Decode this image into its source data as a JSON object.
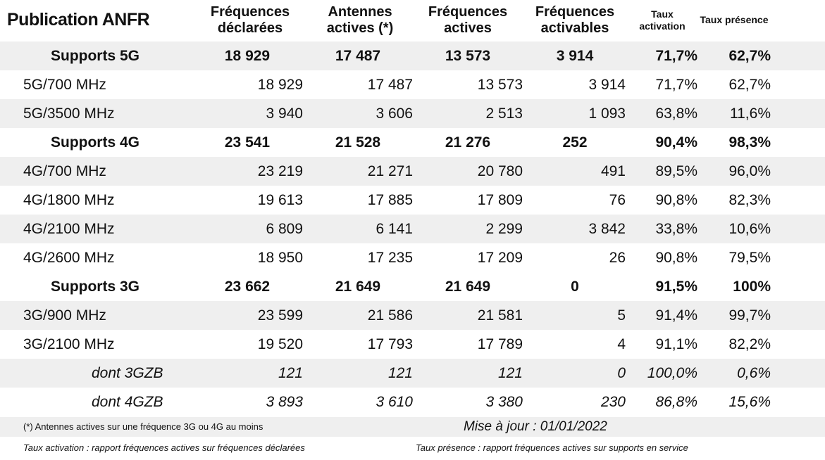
{
  "title": "Publication ANFR",
  "headers": {
    "freq_declarees": [
      "Fréquences",
      "déclarées"
    ],
    "antennes_actives": [
      "Antennes",
      "actives (*)"
    ],
    "freq_actives": [
      "Fréquences",
      "actives"
    ],
    "freq_activables": [
      "Fréquences",
      "activables"
    ],
    "taux_activation": [
      "Taux",
      "activation"
    ],
    "taux_presence": "Taux présence"
  },
  "rows": [
    {
      "type": "summary",
      "bg": "grey",
      "label": "Supports 5G",
      "declarees": "18 929",
      "antennes": "17 487",
      "actives": "13 573",
      "activables": "3 914",
      "taux_activation": "71,7%",
      "taux_presence": "62,7%"
    },
    {
      "type": "detail",
      "bg": "white",
      "label": "5G/700 MHz",
      "declarees": "18 929",
      "antennes": "17 487",
      "actives": "13 573",
      "activables": "3 914",
      "taux_activation": "71,7%",
      "taux_presence": "62,7%"
    },
    {
      "type": "detail",
      "bg": "grey",
      "label": "5G/3500 MHz",
      "declarees": "3 940",
      "antennes": "3 606",
      "actives": "2 513",
      "activables": "1 093",
      "taux_activation": "63,8%",
      "taux_presence": "11,6%"
    },
    {
      "type": "summary",
      "bg": "white",
      "label": "Supports 4G",
      "declarees": "23 541",
      "antennes": "21 528",
      "actives": "21 276",
      "activables": "252",
      "taux_activation": "90,4%",
      "taux_presence": "98,3%"
    },
    {
      "type": "detail",
      "bg": "grey",
      "label": "4G/700 MHz",
      "declarees": "23 219",
      "antennes": "21 271",
      "actives": "20 780",
      "activables": "491",
      "taux_activation": "89,5%",
      "taux_presence": "96,0%"
    },
    {
      "type": "detail",
      "bg": "white",
      "label": "4G/1800 MHz",
      "declarees": "19 613",
      "antennes": "17 885",
      "actives": "17 809",
      "activables": "76",
      "taux_activation": "90,8%",
      "taux_presence": "82,3%"
    },
    {
      "type": "detail",
      "bg": "grey",
      "label": "4G/2100 MHz",
      "declarees": "6 809",
      "antennes": "6 141",
      "actives": "2 299",
      "activables": "3 842",
      "taux_activation": "33,8%",
      "taux_presence": "10,6%"
    },
    {
      "type": "detail",
      "bg": "white",
      "label": "4G/2600 MHz",
      "declarees": "18 950",
      "antennes": "17 235",
      "actives": "17 209",
      "activables": "26",
      "taux_activation": "90,8%",
      "taux_presence": "79,5%"
    },
    {
      "type": "summary",
      "bg": "white",
      "label": "Supports 3G",
      "declarees": "23 662",
      "antennes": "21 649",
      "actives": "21 649",
      "activables": "0",
      "taux_activation": "91,5%",
      "taux_presence": "100%"
    },
    {
      "type": "detail",
      "bg": "grey",
      "label": "3G/900 MHz",
      "declarees": "23 599",
      "antennes": "21 586",
      "actives": "21 581",
      "activables": "5",
      "taux_activation": "91,4%",
      "taux_presence": "99,7%"
    },
    {
      "type": "detail",
      "bg": "white",
      "label": "3G/2100 MHz",
      "declarees": "19 520",
      "antennes": "17 793",
      "actives": "17 789",
      "activables": "4",
      "taux_activation": "91,1%",
      "taux_presence": "82,2%"
    },
    {
      "type": "sub",
      "bg": "grey",
      "label": "dont 3GZB",
      "declarees": "121",
      "antennes": "121",
      "actives": "121",
      "activables": "0",
      "taux_activation": "100,0%",
      "taux_presence": "0,6%"
    },
    {
      "type": "sub",
      "bg": "white",
      "label": "dont 4GZB",
      "declarees": "3 893",
      "antennes": "3 610",
      "actives": "3 380",
      "activables": "230",
      "taux_activation": "86,8%",
      "taux_presence": "15,6%"
    }
  ],
  "footer": {
    "note_antennes": "(*) Antennes actives sur une fréquence 3G ou 4G au moins",
    "mise_a_jour": "Mise à jour : 01/01/2022",
    "def_activation": "Taux activation : rapport fréquences actives sur fréquences déclarées",
    "def_presence": "Taux présence : rapport fréquences actives sur supports en service"
  }
}
